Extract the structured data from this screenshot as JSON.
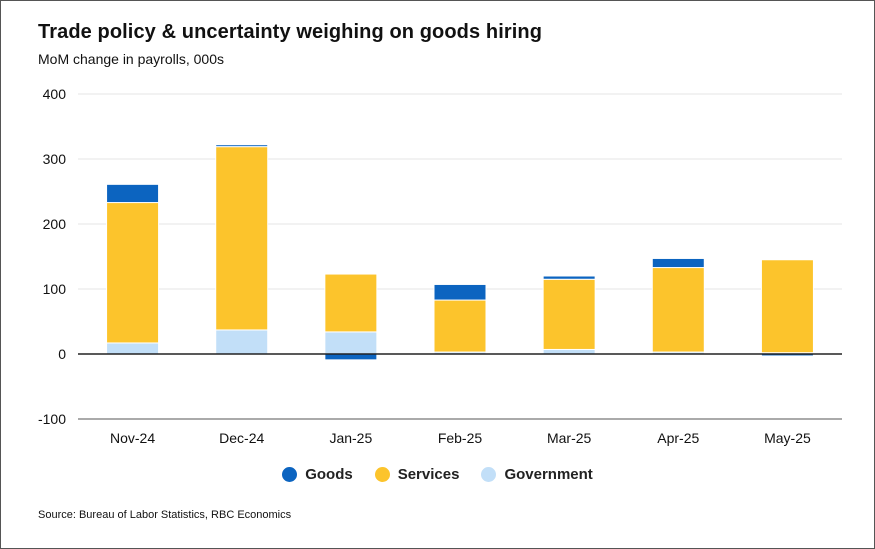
{
  "title": "Trade policy & uncertainty weighing on goods hiring",
  "subtitle": "MoM change in payrolls, 000s",
  "source": "Source: Bureau of Labor Statistics, RBC Economics",
  "colors": {
    "goods": "#0c64c0",
    "services": "#fcc42c",
    "government": "#c2dff8",
    "grid": "#e4e4e4",
    "axis": "#222222"
  },
  "chart_data": {
    "type": "bar",
    "stacked": true,
    "categories": [
      "Nov-24",
      "Dec-24",
      "Jan-25",
      "Feb-25",
      "Mar-25",
      "Apr-25",
      "May-25"
    ],
    "series": [
      {
        "name": "Government",
        "color": "#c2dff8",
        "values": [
          17,
          37,
          34,
          3,
          7,
          3,
          2
        ]
      },
      {
        "name": "Services",
        "color": "#fcc42c",
        "values": [
          216,
          282,
          89,
          80,
          108,
          130,
          143
        ]
      },
      {
        "name": "Goods",
        "color": "#0c64c0",
        "values": [
          28,
          3,
          -9,
          24,
          5,
          14,
          -3
        ]
      }
    ],
    "yticks": [
      400,
      300,
      200,
      100,
      0,
      -100
    ],
    "ylim": [
      -100,
      400
    ],
    "grid": true,
    "legend_position": "bottom"
  }
}
